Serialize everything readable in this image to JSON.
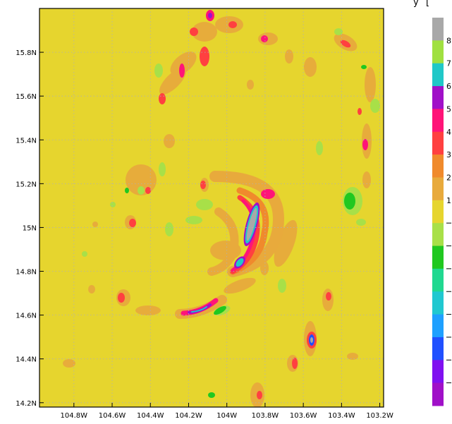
{
  "map": {
    "lat_ticks": [
      {
        "value": 15.8,
        "label": "15.8N"
      },
      {
        "value": 15.6,
        "label": "15.6N"
      },
      {
        "value": 15.4,
        "label": "15.4N"
      },
      {
        "value": 15.2,
        "label": "15.2N"
      },
      {
        "value": 15.0,
        "label": "15N"
      },
      {
        "value": 14.8,
        "label": "14.8N"
      },
      {
        "value": 14.6,
        "label": "14.6N"
      },
      {
        "value": 14.4,
        "label": "14.4N"
      },
      {
        "value": 14.2,
        "label": "14.2N"
      }
    ],
    "lon_ticks": [
      {
        "value": -104.8,
        "label": "104.8W"
      },
      {
        "value": -104.6,
        "label": "104.6W"
      },
      {
        "value": -104.4,
        "label": "104.4W"
      },
      {
        "value": -104.2,
        "label": "104.2W"
      },
      {
        "value": -104.0,
        "label": "104W"
      },
      {
        "value": -103.8,
        "label": "103.8W"
      },
      {
        "value": -103.6,
        "label": "103.6W"
      },
      {
        "value": -103.4,
        "label": "103.4W"
      },
      {
        "value": -103.2,
        "label": "103.2W"
      }
    ],
    "lon_range": [
      -104.98,
      -103.18
    ],
    "lat_range": [
      14.18,
      16.0
    ],
    "background_color": "#e6d52e",
    "gridlines": "dotted",
    "colorbar": {
      "colors": [
        "#a8a8a8",
        "#a0e040",
        "#20c8c8",
        "#a010c8",
        "#ff1478",
        "#ff4040",
        "#f08a2c",
        "#e8aa3c",
        "#e6d52e",
        "#a8e048",
        "#20c820",
        "#20d890",
        "#20c8d0",
        "#1ea0ff",
        "#2050ff",
        "#8010f0",
        "#a010c8"
      ],
      "labels": [
        "8",
        "7",
        "6",
        "5",
        "4",
        "3",
        "2",
        "1",
        "",
        "",
        "",
        "",
        "",
        "",
        "",
        "",
        ""
      ]
    }
  }
}
